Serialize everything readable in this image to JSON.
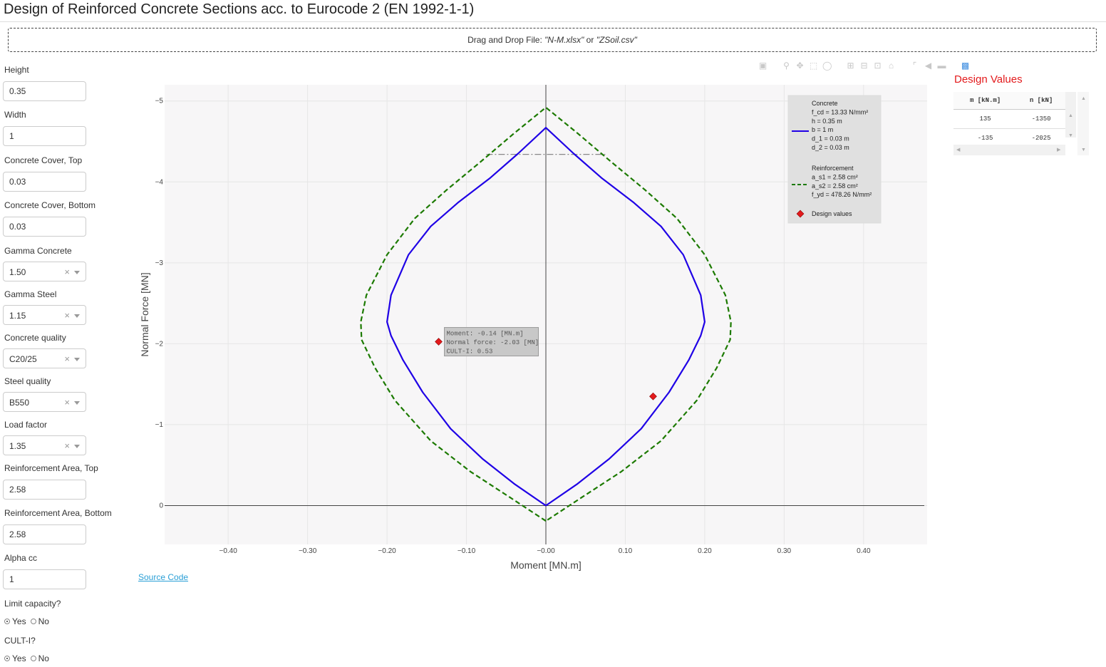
{
  "page": {
    "title": "Design of Reinforced Concrete Sections acc. to Eurocode 2 (EN 1992-1-1)",
    "dropzone": {
      "prefix": "Drag and Drop File: ",
      "file1": "\"N-M.xlsx\"",
      "mid": " or ",
      "file2": "\"ZSoil.csv\""
    }
  },
  "inputs": {
    "height": {
      "label": "Height",
      "value": "0.35"
    },
    "width": {
      "label": "Width",
      "value": "1"
    },
    "cover_top": {
      "label": "Concrete Cover, Top",
      "value": "0.03"
    },
    "cover_bottom": {
      "label": "Concrete Cover, Bottom",
      "value": "0.03"
    },
    "gamma_concrete": {
      "label": "Gamma Concrete",
      "value": "1.50"
    },
    "gamma_steel": {
      "label": "Gamma Steel",
      "value": "1.15"
    },
    "concrete_quality": {
      "label": "Concrete quality",
      "value": "C20/25"
    },
    "steel_quality": {
      "label": "Steel quality",
      "value": "B550"
    },
    "load_factor": {
      "label": "Load factor",
      "value": "1.35"
    },
    "reinf_top": {
      "label": "Reinforcement Area, Top",
      "value": "2.58"
    },
    "reinf_bottom": {
      "label": "Reinforcement Area, Bottom",
      "value": "2.58"
    },
    "alpha_cc": {
      "label": "Alpha cc",
      "value": "1"
    },
    "limit_capacity": {
      "label": "Limit capacity?",
      "yes": "Yes",
      "no": "No",
      "selected": "Yes"
    },
    "cult_i": {
      "label": "CULT-I?",
      "yes": "Yes",
      "no": "No",
      "selected": "Yes"
    },
    "clear_symbol": "×"
  },
  "links": {
    "source_code": "Source Code"
  },
  "modebar_icons": [
    "camera-icon",
    "zoom-icon",
    "pan-icon",
    "box-select-icon",
    "lasso-select-icon",
    "zoom-in-icon",
    "zoom-out-icon",
    "autoscale-icon",
    "reset-axes-icon",
    "spike-lines-icon",
    "hover-closest-icon",
    "hover-compare-icon",
    "plotly-logo-icon"
  ],
  "design_values": {
    "title": "Design Values",
    "columns": [
      "m [kN.m]",
      "n [kN]"
    ],
    "rows": [
      [
        "135",
        "-1350"
      ],
      [
        "-135",
        "-2025"
      ]
    ]
  },
  "colors": {
    "concrete": "#1f00e6",
    "reinforcement": "#1c7a00",
    "design": "#e31a1c",
    "plot_bg": "#f7f6f7",
    "title_red": "#e31a1c"
  },
  "chart_data": {
    "type": "line",
    "xlabel": "Moment [MN.m]",
    "ylabel": "Normal Force [MN]",
    "xlim": [
      -0.48,
      0.48
    ],
    "ylim": [
      0.48,
      -5.2
    ],
    "y_reversed": true,
    "grid": true,
    "xticks": [
      -0.4,
      -0.3,
      -0.2,
      -0.1,
      0.0,
      0.1,
      0.2,
      0.3,
      0.4
    ],
    "xtick_labels": [
      "−0.40",
      "−0.30",
      "−0.20",
      "−0.10",
      "−0.00",
      "0.10",
      "0.20",
      "0.30",
      "0.40"
    ],
    "yticks": [
      -5,
      -4,
      -3,
      -2,
      -1,
      0
    ],
    "ytick_labels": [
      "−5",
      "−4",
      "−3",
      "−2",
      "−1",
      "0"
    ],
    "legend_position": "top-right",
    "legend": {
      "concrete_title": "Concrete",
      "concrete_lines": [
        "f_cd = 13.33 N/mm²",
        "h = 0.35 m",
        "b = 1 m",
        "d_1 = 0.03 m",
        "d_2 = 0.03 m"
      ],
      "reinforcement_title": "Reinforcement",
      "reinforcement_lines": [
        "a_s1 = 2.58 cm²",
        "a_s2 = 2.58 cm²",
        "f_yd = 478.26 N/mm²"
      ],
      "design_label": "Design values"
    },
    "series": [
      {
        "name": "Concrete",
        "style": "solid",
        "x": [
          0.0,
          -0.04,
          -0.08,
          -0.12,
          -0.155,
          -0.18,
          -0.195,
          -0.2,
          -0.195,
          -0.173,
          -0.145,
          -0.11,
          -0.07,
          -0.035,
          0.0,
          0.035,
          0.07,
          0.11,
          0.145,
          0.173,
          0.195,
          0.2,
          0.195,
          0.18,
          0.155,
          0.12,
          0.08,
          0.04,
          0.0
        ],
        "y": [
          0.0,
          -0.27,
          -0.58,
          -0.95,
          -1.4,
          -1.8,
          -2.1,
          -2.27,
          -2.6,
          -3.1,
          -3.45,
          -3.75,
          -4.05,
          -4.35,
          -4.67,
          -4.35,
          -4.05,
          -3.75,
          -3.45,
          -3.1,
          -2.6,
          -2.27,
          -2.1,
          -1.8,
          -1.4,
          -0.95,
          -0.58,
          -0.27,
          0.0
        ]
      },
      {
        "name": "Reinforcement",
        "style": "dashed",
        "x": [
          0.0,
          -0.045,
          -0.095,
          -0.145,
          -0.19,
          -0.215,
          -0.232,
          -0.233,
          -0.226,
          -0.2,
          -0.165,
          -0.125,
          -0.082,
          -0.04,
          0.0,
          0.04,
          0.082,
          0.125,
          0.165,
          0.2,
          0.226,
          0.233,
          0.232,
          0.215,
          0.19,
          0.145,
          0.095,
          0.045,
          0.0
        ],
        "y": [
          0.19,
          -0.1,
          -0.42,
          -0.8,
          -1.3,
          -1.7,
          -2.05,
          -2.27,
          -2.6,
          -3.1,
          -3.55,
          -3.9,
          -4.25,
          -4.6,
          -4.92,
          -4.6,
          -4.25,
          -3.9,
          -3.55,
          -3.1,
          -2.6,
          -2.27,
          -2.05,
          -1.7,
          -1.3,
          -0.8,
          -0.42,
          -0.1,
          0.19
        ]
      }
    ],
    "limit_line": {
      "x": [
        -0.075,
        0.075
      ],
      "y": -4.34
    },
    "design_points": {
      "name": "Design values",
      "x": [
        -0.135,
        0.135
      ],
      "y": [
        -2.025,
        -1.35
      ]
    },
    "hover_label": [
      "Moment: -0.14 [MN.m]",
      "Normal force: -2.03 [MN]",
      "CULT-I: 0.53"
    ]
  }
}
